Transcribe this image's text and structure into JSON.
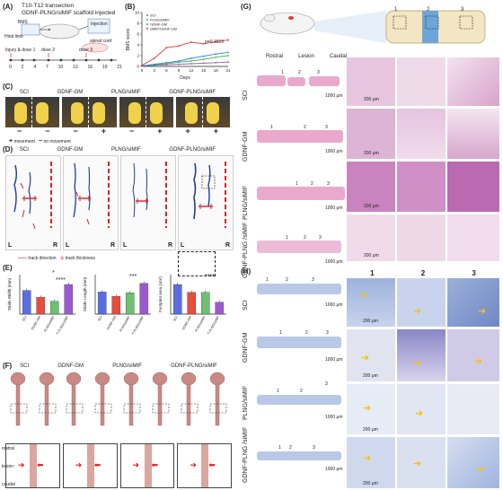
{
  "panelA": {
    "letter": "(A)",
    "title1": "T10-T12 transection",
    "title2": "GDNF-PLNG/siMIF scaffold injected",
    "labels": {
      "bms": "BMS",
      "injection": "Injection",
      "hind_limb": "Hind limb",
      "spinal_cord": "spinal cord"
    },
    "timeline_label": "Injury & dose 1",
    "doses": [
      "dose 2",
      "dose 3"
    ],
    "days": [
      "0",
      "2",
      "4",
      "7",
      "10",
      "13",
      "16",
      "19",
      "21"
    ]
  },
  "panelB": {
    "letter": "(B)",
    "legend": [
      "SCI",
      "PLNG/siMIF",
      "GDNF-GM",
      "siMIF/GDNF-GM"
    ],
    "pvalue": "p=0.1653"
  },
  "panelC": {
    "letter": "(C)",
    "groups": [
      "SCI",
      "GDNF-GM",
      "PLNG/siMIF",
      "GDNF-PLNG/siMIF"
    ],
    "signs": [
      "−",
      "−",
      "−",
      "+",
      "−",
      "+",
      "+",
      "+"
    ],
    "legend_plus": "movement",
    "legend_minus": "no movement"
  },
  "panelD": {
    "letter": "(D)",
    "groups": [
      "SCI",
      "GDNF-GM",
      "PLNG/siMIF",
      "GDNF-PLNG/siMIF"
    ],
    "L": "L",
    "R": "R",
    "legend_direction": "track direction",
    "legend_thickness": "track thickness"
  },
  "panelE": {
    "letter": "(E)",
    "sig": [
      "*",
      "****",
      "***",
      "****"
    ],
    "charts": [
      {
        "ylabel": "Stride Width (mm)"
      },
      {
        "ylabel": "Stride Length (mm)"
      },
      {
        "ylabel": "Footprint area (cm²)"
      }
    ],
    "groups": [
      "SCI",
      "GDNF-GM",
      "PLNG/siMIF",
      "GDNF-PLNG/siMIF"
    ]
  },
  "panelF": {
    "letter": "(F)",
    "groups": [
      "SCI",
      "GDNF-GM",
      "PLNG/siMIF",
      "GDNF-PLNG/siMIF"
    ],
    "rostral": "rostral",
    "lesion": "lesion",
    "caudal": "caudal"
  },
  "panelG": {
    "letter": "(G)",
    "cyl_nums": [
      "1",
      "2",
      "3"
    ],
    "positions": [
      "Rostral",
      "Lesion",
      "Caudal"
    ],
    "rows": [
      "SCI",
      "GDNF-GM",
      "PLNG/siMIF",
      "GDNF-PLNG /siMIF"
    ],
    "box_nums": [
      "1",
      "2",
      "3"
    ],
    "scale_overview": "1000 μm",
    "scale_zoom": "200 μm"
  },
  "panelH": {
    "letter": "(H)",
    "col_nums": [
      "1",
      "2",
      "3"
    ],
    "rows": [
      "SCI",
      "GDNF-GM",
      "PLNG/siMIF",
      "GDNF-PLNG /siMIF"
    ],
    "box_nums": [
      "1",
      "2",
      "3"
    ],
    "scale_overview": "1000 μm",
    "scale_zoom": "200 μm"
  },
  "chart_data": [
    {
      "type": "line",
      "title": "",
      "xlabel": "Days",
      "ylabel": "BMS score",
      "x": [
        0,
        3,
        6,
        9,
        12,
        15,
        18,
        21
      ],
      "xlim": [
        0,
        21
      ],
      "ylim": [
        0,
        10
      ],
      "yticks": [
        0,
        2,
        4,
        6,
        8,
        10
      ],
      "series": [
        {
          "name": "SCI",
          "color": "#8e5ea2",
          "values": [
            0.1,
            0.2,
            0.3,
            0.4,
            0.5,
            0.6,
            0.7,
            0.8
          ]
        },
        {
          "name": "PLNG/siMIF",
          "color": "#4caf50",
          "values": [
            0.1,
            0.3,
            0.5,
            0.8,
            1.0,
            1.3,
            1.7,
            2.0
          ]
        },
        {
          "name": "GDNF-GM",
          "color": "#2e86de",
          "values": [
            0.1,
            0.4,
            0.7,
            1.0,
            1.5,
            1.9,
            2.3,
            2.6
          ]
        },
        {
          "name": "siMIF/GDNF-GM",
          "color": "#e53935",
          "values": [
            0.2,
            1.5,
            3.5,
            3.8,
            4.5,
            4.2,
            4.6,
            4.9
          ]
        }
      ]
    },
    {
      "type": "bar",
      "ylabel": "Stride Width (mm)",
      "categories": [
        "SCI",
        "GDNF-GM",
        "PLNG/siMIF",
        "GDNF-PLNG/siMIF"
      ],
      "values": [
        24,
        17,
        13,
        30
      ],
      "ylim": [
        0,
        40
      ],
      "colors": [
        "#5b6ee1",
        "#e74c3c",
        "#6cc070",
        "#9b59d0"
      ]
    },
    {
      "type": "bar",
      "ylabel": "Stride Length (mm)",
      "categories": [
        "SCI",
        "GDNF-GM",
        "PLNG/siMIF",
        "GDNF-PLNG/siMIF"
      ],
      "values": [
        56,
        45,
        54,
        78
      ],
      "ylim": [
        0,
        100
      ],
      "colors": [
        "#5b6ee1",
        "#e74c3c",
        "#6cc070",
        "#9b59d0"
      ]
    },
    {
      "type": "bar",
      "ylabel": "Footprint area (cm²)",
      "categories": [
        "SCI",
        "GDNF-GM",
        "PLNG/siMIF",
        "GDNF-PLNG/siMIF"
      ],
      "values": [
        0.75,
        0.55,
        0.55,
        0.3
      ],
      "ylim": [
        0,
        1
      ],
      "colors": [
        "#5b6ee1",
        "#e74c3c",
        "#6cc070",
        "#9b59d0"
      ]
    }
  ]
}
